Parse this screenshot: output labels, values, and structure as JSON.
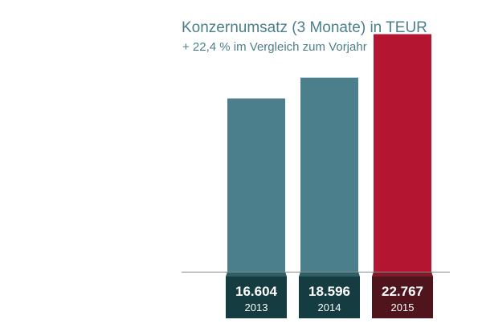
{
  "chart_data": {
    "type": "bar",
    "title": "Konzernumsatz (3 Monate) in TEUR",
    "subtitle": "+ 22,4 % im Vergleich zum Vorjahr",
    "categories": [
      "2013",
      "2014",
      "2015"
    ],
    "values": [
      16604,
      18596,
      22767
    ],
    "value_labels": [
      "16.604",
      "18.596",
      "22.767"
    ],
    "ylim": [
      0,
      24500
    ],
    "grid": false,
    "legend": "none",
    "colors": {
      "bars": [
        "#4a7f8b",
        "#4a7f8b",
        "#b41530"
      ],
      "label_boxes": [
        "#143c41",
        "#143c41",
        "#50141c"
      ],
      "shadows": [
        "#2e5e66",
        "#2e5e66",
        "#7e1a2a"
      ],
      "baseline": "#8a8a8a"
    }
  }
}
